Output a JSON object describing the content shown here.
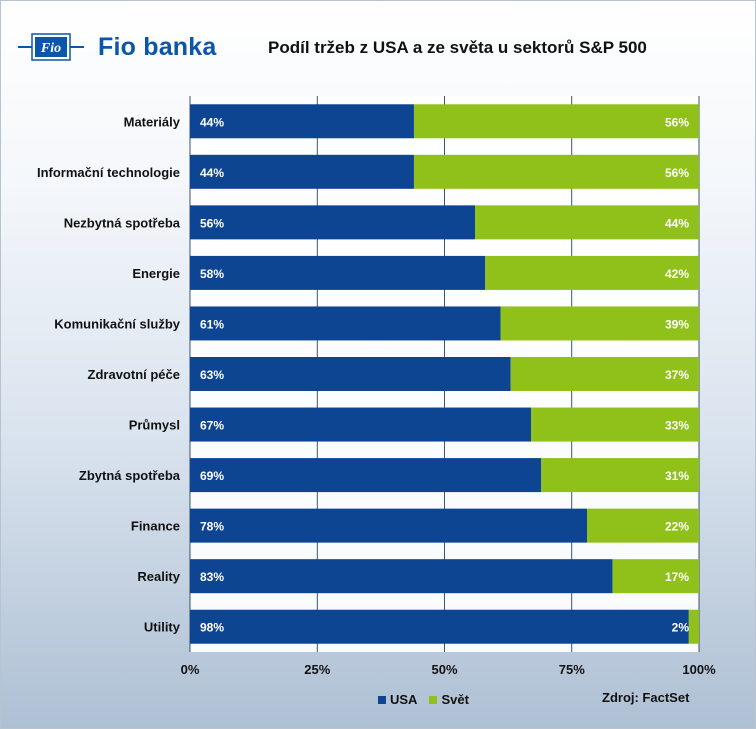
{
  "brand": {
    "name": "Fio banka",
    "mark_text": "Fio"
  },
  "colors": {
    "usa": "#0d4592",
    "svet": "#8fc11a",
    "brand": "#0b56a8"
  },
  "source_label": "Zdroj:  FactSet",
  "chart_data": {
    "type": "bar",
    "orientation": "horizontal",
    "stacked": true,
    "title": "Podíl tržeb z USA a ze světa u sektorů S&P 500",
    "categories": [
      "Materiály",
      "Informační technologie",
      "Nezbytná spotřeba",
      "Energie",
      "Komunikační služby",
      "Zdravotní péče",
      "Průmysl",
      "Zbytná spotřeba",
      "Finance",
      "Reality",
      "Utility"
    ],
    "series": [
      {
        "name": "USA",
        "color": "#0d4592",
        "values": [
          44,
          44,
          56,
          58,
          61,
          63,
          67,
          69,
          78,
          83,
          98
        ],
        "labels": [
          "44%",
          "44%",
          "56%",
          "58%",
          "61%",
          "63%",
          "67%",
          "69%",
          "78%",
          "83%",
          "98%"
        ]
      },
      {
        "name": "Svět",
        "color": "#8fc11a",
        "values": [
          56,
          56,
          44,
          42,
          39,
          37,
          33,
          31,
          22,
          17,
          2
        ],
        "labels": [
          "56%",
          "56%",
          "44%",
          "42%",
          "39%",
          "37%",
          "33%",
          "31%",
          "22%",
          "17%",
          "2%"
        ]
      }
    ],
    "xlim": [
      0,
      100
    ],
    "xticks": [
      "0%",
      "25%",
      "50%",
      "75%",
      "100%"
    ],
    "grid": true,
    "legend": "bottom"
  }
}
